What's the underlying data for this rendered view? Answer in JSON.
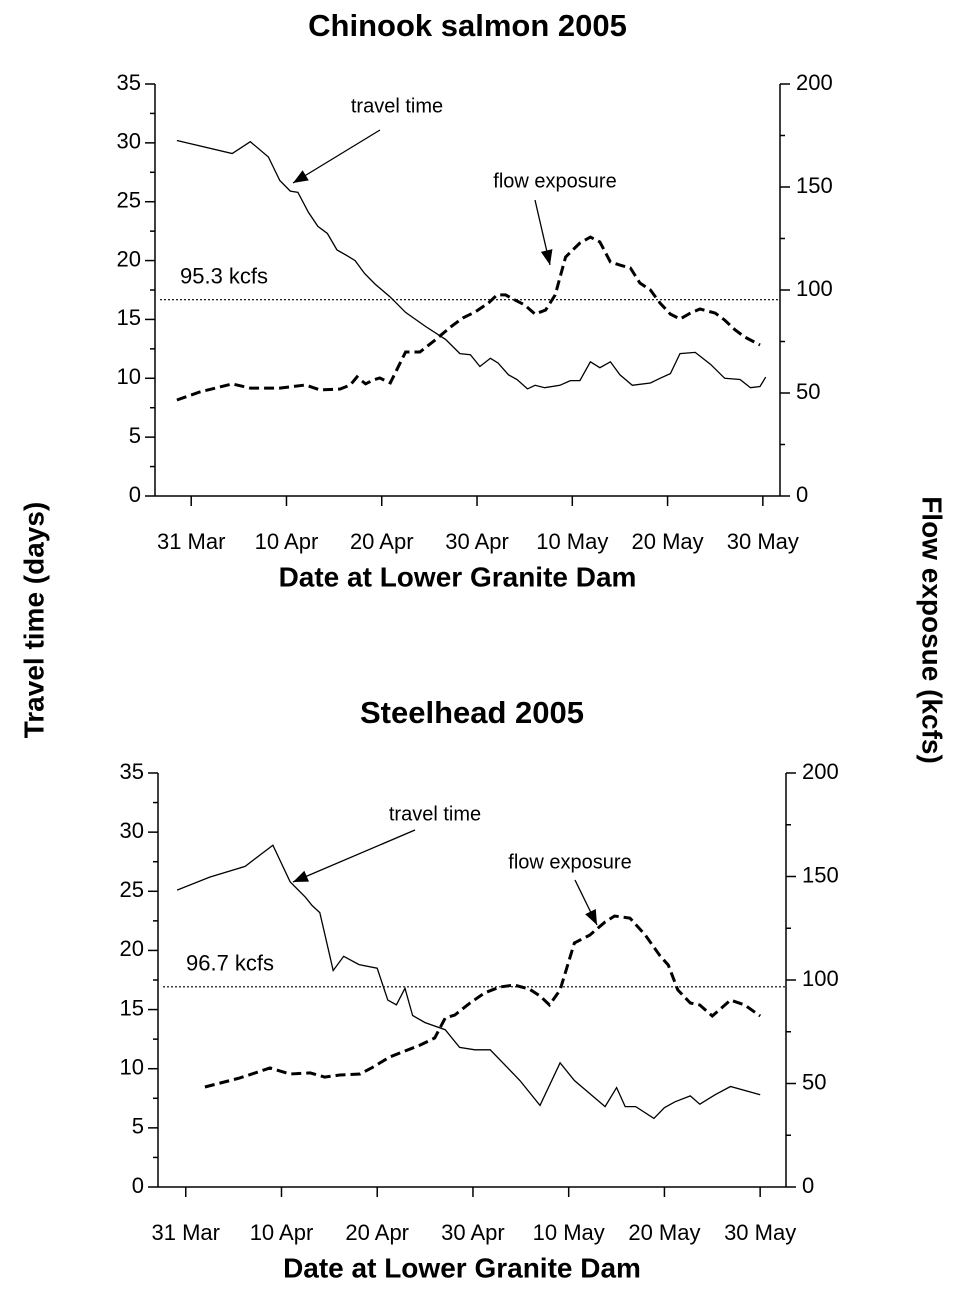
{
  "ylabel": "Travel time (days)",
  "y2label": "Flow exposue (kcfs)",
  "chart_data": [
    {
      "type": "line",
      "title": "Chinook salmon 2005",
      "xlabel": "Date at Lower Granite Dam",
      "xlim": [
        -3.8,
        61.8
      ],
      "xticks": [
        {
          "value": 0,
          "label": "31 Mar"
        },
        {
          "value": 10,
          "label": "10 Apr"
        },
        {
          "value": 20,
          "label": "20 Apr"
        },
        {
          "value": 30,
          "label": "30 Apr"
        },
        {
          "value": 40,
          "label": "10 May"
        },
        {
          "value": 50,
          "label": "20 May"
        },
        {
          "value": 60,
          "label": "30 May"
        }
      ],
      "ylim": [
        0,
        35
      ],
      "yticks": [
        0,
        5,
        10,
        15,
        20,
        25,
        30,
        35
      ],
      "yminorticks": [
        2.5,
        7.5,
        12.5,
        17.5,
        22.5,
        27.5,
        32.5
      ],
      "y2lim": [
        0,
        200
      ],
      "y2ticks": [
        0,
        50,
        100,
        150,
        200
      ],
      "y2minorticks": [
        25,
        75,
        125,
        175
      ],
      "hline": {
        "value": 95.3,
        "axis": "y2",
        "label": "95.3 kcfs"
      },
      "annotations": [
        "travel time",
        "flow exposure"
      ],
      "series": [
        {
          "name": "travel time",
          "color": "#000000",
          "style": "solid",
          "axis": "y",
          "x": [
            -1.5,
            4.3,
            6.2,
            8.1,
            9.3,
            10.4,
            11.2,
            12.3,
            13.3,
            14.3,
            15.3,
            16.4,
            17.2,
            18.2,
            19.3,
            20.9,
            22.5,
            24.6,
            26.7,
            28.2,
            29.3,
            30.3,
            31.4,
            32.2,
            33.3,
            34.2,
            35.3,
            36.1,
            37.1,
            38.7,
            39.8,
            40.8,
            41.9,
            42.9,
            44.0,
            45.0,
            46.3,
            48.2,
            49.2,
            50.3,
            51.3,
            52.9,
            54.5,
            56.0,
            57.6,
            58.7,
            59.7,
            60.3
          ],
          "values": [
            30.2,
            29.1,
            30.1,
            28.8,
            26.8,
            25.9,
            25.8,
            24.1,
            22.9,
            22.3,
            20.9,
            20.4,
            20.0,
            18.9,
            18.0,
            16.9,
            15.6,
            14.4,
            13.3,
            12.1,
            12.0,
            11.0,
            11.7,
            11.3,
            10.3,
            9.9,
            9.1,
            9.4,
            9.2,
            9.4,
            9.8,
            9.8,
            11.4,
            10.9,
            11.4,
            10.3,
            9.4,
            9.6,
            10.0,
            10.4,
            12.1,
            12.2,
            11.2,
            10.0,
            9.9,
            9.2,
            9.3,
            10.1
          ]
        },
        {
          "name": "flow exposure",
          "color": "#000000",
          "style": "dashed",
          "axis": "y2",
          "x": [
            -1.5,
            0.9,
            4.3,
            6.2,
            9.3,
            12.0,
            13.5,
            15.6,
            16.7,
            17.4,
            18.3,
            19.1,
            19.8,
            20.9,
            22.5,
            24.0,
            25.6,
            27.2,
            28.5,
            29.8,
            31.2,
            32.1,
            33.0,
            34.0,
            35.0,
            36.1,
            37.2,
            38.2,
            39.3,
            40.8,
            41.9,
            42.9,
            44.0,
            45.0,
            46.1,
            47.1,
            48.2,
            49.2,
            50.3,
            51.3,
            52.4,
            53.4,
            55.0,
            56.0,
            57.1,
            58.1,
            59.7
          ],
          "values": [
            46.6,
            50.5,
            54.4,
            52.4,
            52.4,
            53.9,
            51.5,
            51.9,
            53.9,
            57.8,
            54.4,
            56.3,
            57.3,
            54.9,
            69.9,
            69.9,
            75.7,
            82.0,
            86.4,
            89.3,
            93.7,
            97.6,
            97.6,
            95.1,
            92.7,
            88.3,
            90.3,
            97.6,
            116.0,
            122.8,
            125.7,
            123.3,
            113.6,
            112.1,
            110.7,
            103.4,
            100.0,
            93.7,
            88.3,
            85.9,
            88.8,
            90.8,
            88.8,
            85.4,
            80.6,
            77.2,
            73.3
          ]
        }
      ]
    },
    {
      "type": "line",
      "title": "Steelhead 2005",
      "xlabel": "Date at Lower Granite Dam",
      "xlim": [
        -2.9,
        62.7
      ],
      "xticks": [
        {
          "value": 0,
          "label": "31 Mar"
        },
        {
          "value": 10,
          "label": "10 Apr"
        },
        {
          "value": 20,
          "label": "20 Apr"
        },
        {
          "value": 30,
          "label": "30 Apr"
        },
        {
          "value": 40,
          "label": "10 May"
        },
        {
          "value": 50,
          "label": "20 May"
        },
        {
          "value": 60,
          "label": "30 May"
        }
      ],
      "ylim": [
        0,
        35
      ],
      "yticks": [
        0,
        5,
        10,
        15,
        20,
        25,
        30,
        35
      ],
      "yminorticks": [
        2.5,
        7.5,
        12.5,
        17.5,
        22.5,
        27.5,
        32.5
      ],
      "y2lim": [
        0,
        200
      ],
      "y2ticks": [
        0,
        50,
        100,
        150,
        200
      ],
      "y2minorticks": [
        25,
        75,
        125,
        175
      ],
      "hline": {
        "value": 96.7,
        "axis": "y2",
        "label": "96.7 kcfs"
      },
      "annotations": [
        "travel time",
        "flow exposure"
      ],
      "series": [
        {
          "name": "travel time",
          "color": "#000000",
          "style": "solid",
          "axis": "y",
          "x": [
            -0.9,
            2.5,
            6.2,
            9.1,
            10.9,
            12.5,
            13.2,
            14.0,
            15.4,
            16.5,
            18.1,
            20.0,
            21.1,
            22.0,
            22.9,
            23.7,
            25.0,
            27.1,
            28.6,
            30.2,
            31.8,
            34.9,
            37.0,
            39.1,
            40.6,
            42.2,
            43.8,
            45.0,
            45.9,
            47.0,
            48.9,
            50.0,
            51.1,
            52.7,
            53.7,
            55.3,
            56.9,
            60.0
          ],
          "values": [
            25.1,
            26.2,
            27.1,
            28.9,
            25.8,
            24.5,
            23.8,
            23.2,
            18.3,
            19.5,
            18.8,
            18.5,
            15.8,
            15.4,
            16.8,
            14.5,
            13.9,
            13.3,
            11.8,
            11.6,
            11.6,
            9.0,
            6.9,
            10.5,
            9.0,
            7.9,
            6.8,
            8.4,
            6.8,
            6.8,
            5.8,
            6.7,
            7.2,
            7.7,
            7.0,
            7.8,
            8.5,
            7.8
          ]
        },
        {
          "name": "flow exposure",
          "color": "#000000",
          "style": "dashed",
          "axis": "y2",
          "x": [
            2.0,
            5.6,
            8.8,
            10.9,
            13.0,
            14.5,
            16.1,
            18.2,
            19.4,
            21.3,
            22.9,
            24.5,
            26.0,
            27.1,
            28.1,
            29.7,
            31.2,
            32.8,
            34.3,
            35.9,
            37.0,
            38.0,
            39.1,
            40.6,
            42.2,
            43.8,
            44.8,
            46.4,
            48.0,
            49.5,
            50.4,
            51.4,
            52.7,
            53.7,
            55.0,
            56.9,
            58.4,
            60.0
          ],
          "values": [
            48.3,
            52.6,
            57.5,
            54.6,
            55.1,
            53.1,
            54.1,
            54.6,
            57.5,
            62.8,
            65.7,
            68.6,
            72.0,
            81.6,
            83.1,
            88.9,
            93.7,
            96.6,
            97.6,
            95.6,
            92.3,
            87.9,
            95.2,
            117.9,
            121.7,
            128.0,
            130.9,
            129.9,
            121.7,
            112.0,
            107.2,
            95.2,
            88.9,
            87.9,
            82.6,
            90.3,
            87.9,
            82.6
          ]
        }
      ]
    }
  ]
}
